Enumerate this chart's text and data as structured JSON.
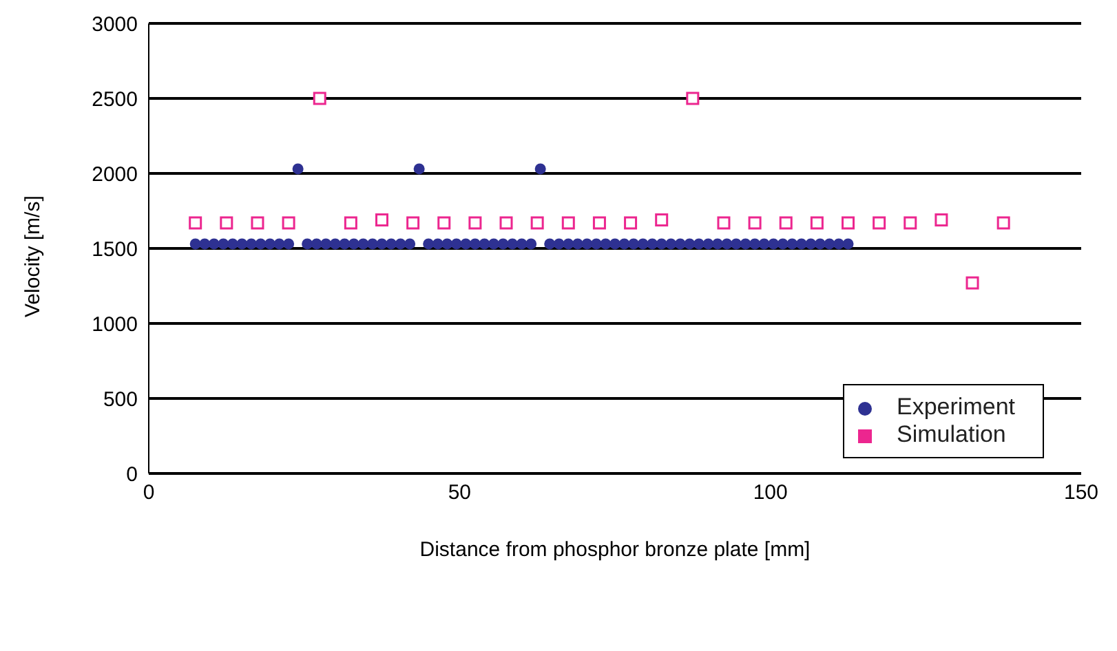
{
  "chart_data": {
    "type": "scatter",
    "xlabel": "Distance from phosphor bronze plate [mm]",
    "ylabel": "Velocity [m/s]",
    "xlim": [
      0,
      150
    ],
    "xticks": [
      0,
      50,
      100,
      150
    ],
    "ylim": [
      0,
      3000
    ],
    "yticks": [
      0,
      500,
      1000,
      1500,
      2000,
      2500,
      3000
    ],
    "grid": "y",
    "legend": "bottom right",
    "series": [
      {
        "name": "Experiment",
        "color": "#2e3192",
        "marker": "circle",
        "x": [
          7.5,
          9,
          10.5,
          12,
          13.5,
          15,
          16.5,
          18,
          19.5,
          21,
          22.5,
          24,
          25.5,
          27,
          28.5,
          30,
          31.5,
          33,
          34.5,
          36,
          37.5,
          39,
          40.5,
          42,
          43.5,
          45,
          46.5,
          48,
          49.5,
          51,
          52.5,
          54,
          55.5,
          57,
          58.5,
          60,
          61.5,
          63,
          64.5,
          66,
          67.5,
          69,
          70.5,
          72,
          73.5,
          75,
          76.5,
          78,
          79.5,
          81,
          82.5,
          84,
          85.5,
          87,
          88.5,
          90,
          91.5,
          93,
          94.5,
          96,
          97.5,
          99,
          100.5,
          102,
          103.5,
          105,
          106.5,
          108,
          109.5,
          111,
          112.5
        ],
        "values": [
          1530,
          1530,
          1530,
          1530,
          1530,
          1530,
          1530,
          1530,
          1530,
          1530,
          1530,
          2030,
          1530,
          1530,
          1530,
          1530,
          1530,
          1530,
          1530,
          1530,
          1530,
          1530,
          1530,
          1530,
          2030,
          1530,
          1530,
          1530,
          1530,
          1530,
          1530,
          1530,
          1530,
          1530,
          1530,
          1530,
          1530,
          2030,
          1530,
          1530,
          1530,
          1530,
          1530,
          1530,
          1530,
          1530,
          1530,
          1530,
          1530,
          1530,
          1530,
          1530,
          1530,
          1530,
          1530,
          1530,
          1530,
          1530,
          1530,
          1530,
          1530,
          1530,
          1530,
          1530,
          1530,
          1530,
          1530,
          1530,
          1530,
          1530,
          1530
        ]
      },
      {
        "name": "Simulation",
        "color": "#ec268f",
        "marker": "square",
        "x": [
          7.5,
          12.5,
          17.5,
          22.5,
          27.5,
          32.5,
          37.5,
          42.5,
          47.5,
          52.5,
          57.5,
          62.5,
          67.5,
          72.5,
          77.5,
          82.5,
          87.5,
          92.5,
          97.5,
          102.5,
          107.5,
          112.5,
          117.5,
          122.5,
          127.5,
          132.5,
          137.5
        ],
        "values": [
          1670,
          1670,
          1670,
          1670,
          2500,
          1670,
          1690,
          1670,
          1670,
          1670,
          1670,
          1670,
          1670,
          1670,
          1670,
          1690,
          2500,
          1670,
          1670,
          1670,
          1670,
          1670,
          1670,
          1670,
          1690,
          1270,
          1670
        ]
      }
    ]
  }
}
